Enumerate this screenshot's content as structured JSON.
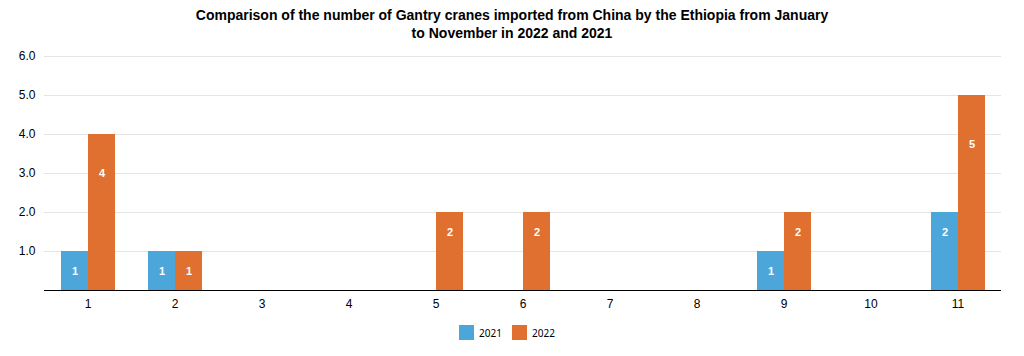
{
  "chart_data": {
    "type": "bar",
    "title": "Comparison of the number of Gantry cranes imported from China by the Ethiopia from January\nto November in 2022 and 2021",
    "categories": [
      "1",
      "2",
      "3",
      "4",
      "5",
      "6",
      "7",
      "8",
      "9",
      "10",
      "11"
    ],
    "series": [
      {
        "name": "2021",
        "color": "#4da6d9",
        "values": [
          1,
          1,
          0,
          0,
          0,
          0,
          0,
          0,
          1,
          0,
          2
        ]
      },
      {
        "name": "2022",
        "color": "#e07030",
        "values": [
          4,
          1,
          0,
          0,
          2,
          2,
          0,
          0,
          2,
          0,
          5
        ]
      }
    ],
    "ylim": [
      0,
      6
    ],
    "yticks": [
      1,
      2,
      3,
      4,
      5,
      6
    ],
    "grid": true,
    "legend": "bottom",
    "data_labels": true
  }
}
